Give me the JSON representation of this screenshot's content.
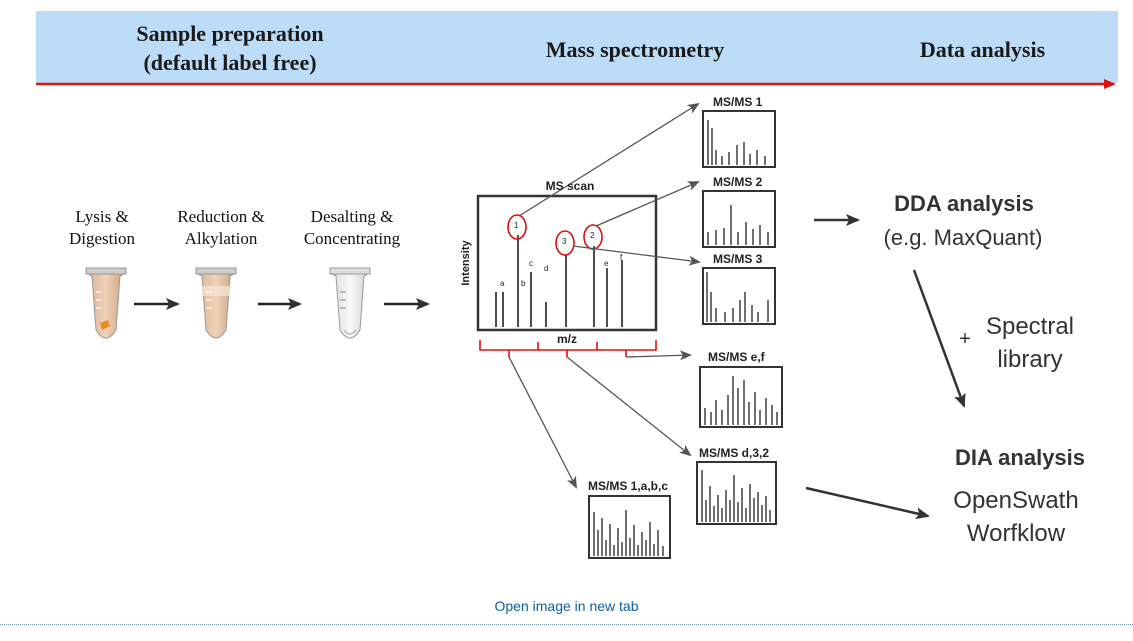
{
  "header": {
    "col1_line1": "Sample preparation",
    "col1_line2": "(default label free)",
    "col2": "Mass spectrometry",
    "col3": "Data analysis"
  },
  "steps": [
    {
      "line1": "Lysis &",
      "line2": "Digestion"
    },
    {
      "line1": "Reduction &",
      "line2": "Alkylation"
    },
    {
      "line1": "Desalting &",
      "line2": "Concentrating"
    }
  ],
  "ms_scan": {
    "title": "MS scan",
    "ylabel": "Intensity",
    "xlabel": "m/z",
    "peak_labels": [
      "a",
      "b",
      "c",
      "d",
      "e",
      "f"
    ],
    "circled": [
      "1",
      "3",
      "2"
    ]
  },
  "msms": {
    "ms1": "MS/MS 1",
    "ms2": "MS/MS 2",
    "ms3": "MS/MS 3",
    "ef": "MS/MS e,f",
    "d32": "MS/MS d,3,2",
    "abc": "MS/MS 1,a,b,c"
  },
  "analysis": {
    "dda_title": "DDA analysis",
    "dda_sub": "(e.g. MaxQuant)",
    "plus": "+",
    "spectral_line1": "Spectral",
    "spectral_line2": "library",
    "dia_title": "DIA analysis",
    "dia_line1": "OpenSwath",
    "dia_line2": "Worfklow"
  },
  "link": {
    "open_image": "Open image in new tab"
  },
  "colors": {
    "header_band": "#bcdcf8",
    "timeline_arrow": "#e01010",
    "circle": "#e01010",
    "link": "#0b5fa5"
  }
}
